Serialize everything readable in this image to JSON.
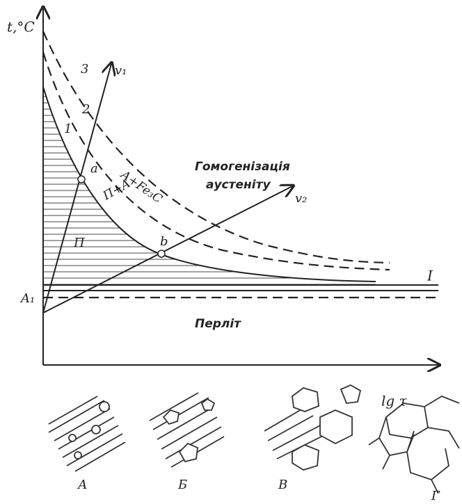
{
  "axes": {
    "y_label": "t,°C",
    "x_label": "lg τ"
  },
  "curves": {
    "curve_1": "1",
    "curve_2": "2",
    "curve_3": "3"
  },
  "rays": {
    "v1": "v₁",
    "v2": "v₂"
  },
  "points": {
    "a": "a",
    "b": "b"
  },
  "regions": {
    "a_fe3c": "А+Fe₃C",
    "p_a": "П+А",
    "p": "П",
    "homogenization_1": "Гомогенізація",
    "homogenization_2": "аустеніту",
    "a1": "A₁",
    "line_i": "I",
    "pearlite": "Перліт"
  },
  "panels": [
    "А",
    "Б",
    "В",
    "Г"
  ]
}
